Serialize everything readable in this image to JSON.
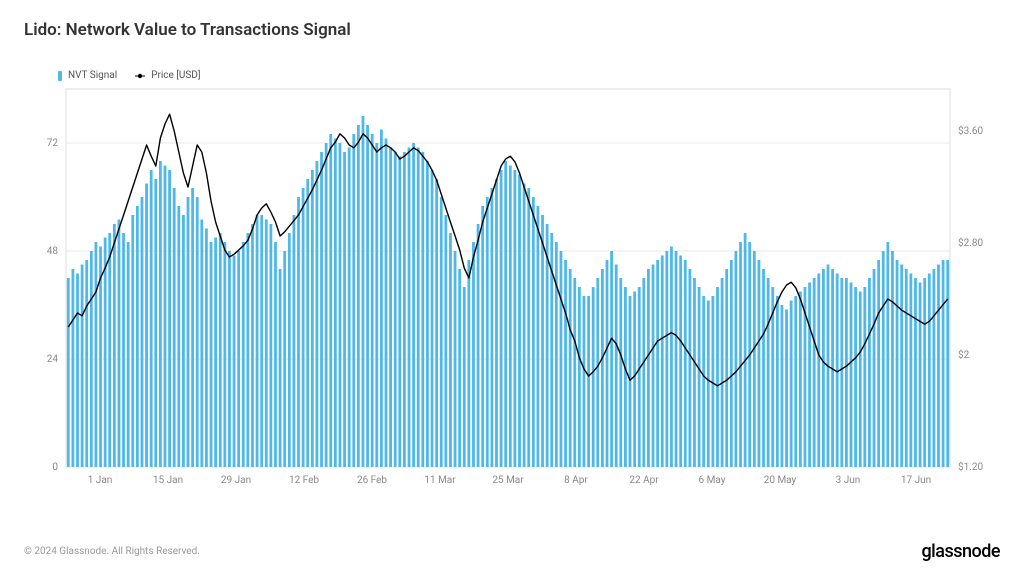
{
  "title": "Lido: Network Value to Transactions Signal",
  "legend": {
    "bar": {
      "label": "NVT Signal",
      "color": "#50b7e9"
    },
    "line": {
      "label": "Price [USD]",
      "color": "#000000"
    }
  },
  "copyright": "© 2024 Glassnode. All Rights Reserved.",
  "brand": "glassnode",
  "chart": {
    "type": "bar+line",
    "background_color": "#ffffff",
    "grid_color": "#e8e8e8",
    "axis_text_color": "#888888",
    "axis_fontsize": 10,
    "plot_border_color": "#dddddd",
    "left_axis": {
      "min": 0,
      "max": 84,
      "ticks": [
        0,
        24,
        48,
        72
      ]
    },
    "right_axis": {
      "min": 1.2,
      "max": 3.9,
      "ticks": [
        1.2,
        2.0,
        2.8,
        3.6
      ],
      "format_prefix": "$"
    },
    "x_labels": [
      "1 Jan",
      "15 Jan",
      "29 Jan",
      "12 Feb",
      "26 Feb",
      "11 Mar",
      "25 Mar",
      "8 Apr",
      "22 Apr",
      "6 May",
      "20 May",
      "3 Jun",
      "17 Jun"
    ],
    "bar_color": "#50b7e9",
    "bar_width": 2.8,
    "line_color": "#000000",
    "line_width": 1.4,
    "nvt_values": [
      42,
      44,
      43,
      45,
      46,
      48,
      50,
      49,
      51,
      52,
      54,
      55,
      52,
      50,
      56,
      58,
      60,
      63,
      66,
      64,
      68,
      67,
      66,
      62,
      58,
      56,
      60,
      62,
      60,
      55,
      53,
      50,
      51,
      52,
      50,
      48,
      47,
      48,
      50,
      52,
      54,
      56,
      56,
      55,
      54,
      50,
      44,
      48,
      52,
      56,
      60,
      62,
      64,
      66,
      68,
      70,
      72,
      74,
      73,
      72,
      70,
      71,
      74,
      76,
      78,
      76,
      74,
      72,
      75,
      73,
      71,
      70,
      69,
      70,
      71,
      72,
      71,
      70,
      68,
      66,
      64,
      60,
      56,
      52,
      48,
      44,
      40,
      46,
      50,
      54,
      58,
      60,
      62,
      64,
      66,
      68,
      67,
      66,
      65,
      63,
      62,
      60,
      58,
      56,
      54,
      52,
      50,
      48,
      46,
      44,
      42,
      40,
      38,
      38,
      40,
      42,
      44,
      46,
      48,
      45,
      42,
      40,
      38,
      39,
      40,
      42,
      44,
      45,
      46,
      47,
      48,
      49,
      48,
      47,
      46,
      44,
      42,
      40,
      38,
      37,
      38,
      40,
      42,
      44,
      46,
      48,
      50,
      52,
      50,
      48,
      46,
      44,
      42,
      40,
      38,
      36,
      35,
      37,
      38,
      39,
      40,
      41,
      42,
      43,
      44,
      45,
      44,
      43,
      42,
      42,
      41,
      40,
      39,
      40,
      42,
      44,
      46,
      48,
      50,
      48,
      46,
      45,
      44,
      43,
      42,
      41,
      42,
      43,
      44,
      45,
      46,
      46
    ],
    "price_values": [
      2.2,
      2.25,
      2.3,
      2.28,
      2.35,
      2.4,
      2.45,
      2.55,
      2.62,
      2.7,
      2.8,
      2.9,
      3.0,
      3.1,
      3.2,
      3.3,
      3.4,
      3.5,
      3.42,
      3.35,
      3.55,
      3.65,
      3.72,
      3.6,
      3.45,
      3.3,
      3.2,
      3.35,
      3.5,
      3.45,
      3.3,
      3.1,
      2.95,
      2.85,
      2.75,
      2.7,
      2.72,
      2.75,
      2.78,
      2.82,
      2.9,
      3.0,
      3.05,
      3.08,
      3.02,
      2.95,
      2.85,
      2.88,
      2.92,
      2.96,
      3.0,
      3.06,
      3.12,
      3.18,
      3.25,
      3.32,
      3.4,
      3.48,
      3.52,
      3.58,
      3.55,
      3.5,
      3.48,
      3.52,
      3.58,
      3.55,
      3.5,
      3.45,
      3.48,
      3.5,
      3.48,
      3.45,
      3.4,
      3.42,
      3.45,
      3.48,
      3.46,
      3.42,
      3.38,
      3.32,
      3.25,
      3.15,
      3.05,
      2.95,
      2.85,
      2.75,
      2.62,
      2.55,
      2.7,
      2.82,
      2.95,
      3.05,
      3.15,
      3.25,
      3.35,
      3.4,
      3.42,
      3.38,
      3.3,
      3.2,
      3.1,
      3.0,
      2.9,
      2.8,
      2.7,
      2.6,
      2.5,
      2.4,
      2.3,
      2.18,
      2.1,
      1.98,
      1.9,
      1.85,
      1.88,
      1.92,
      1.98,
      2.05,
      2.12,
      2.08,
      2.0,
      1.9,
      1.82,
      1.85,
      1.9,
      1.95,
      2.0,
      2.05,
      2.1,
      2.12,
      2.14,
      2.16,
      2.14,
      2.1,
      2.05,
      2.0,
      1.95,
      1.9,
      1.85,
      1.82,
      1.8,
      1.78,
      1.8,
      1.82,
      1.85,
      1.88,
      1.92,
      1.96,
      2.0,
      2.05,
      2.1,
      2.15,
      2.22,
      2.3,
      2.38,
      2.45,
      2.5,
      2.52,
      2.48,
      2.4,
      2.3,
      2.2,
      2.1,
      2.0,
      1.95,
      1.92,
      1.9,
      1.88,
      1.9,
      1.92,
      1.95,
      1.98,
      2.02,
      2.08,
      2.15,
      2.22,
      2.3,
      2.35,
      2.4,
      2.38,
      2.35,
      2.32,
      2.3,
      2.28,
      2.26,
      2.24,
      2.22,
      2.24,
      2.28,
      2.32,
      2.36,
      2.4
    ]
  }
}
